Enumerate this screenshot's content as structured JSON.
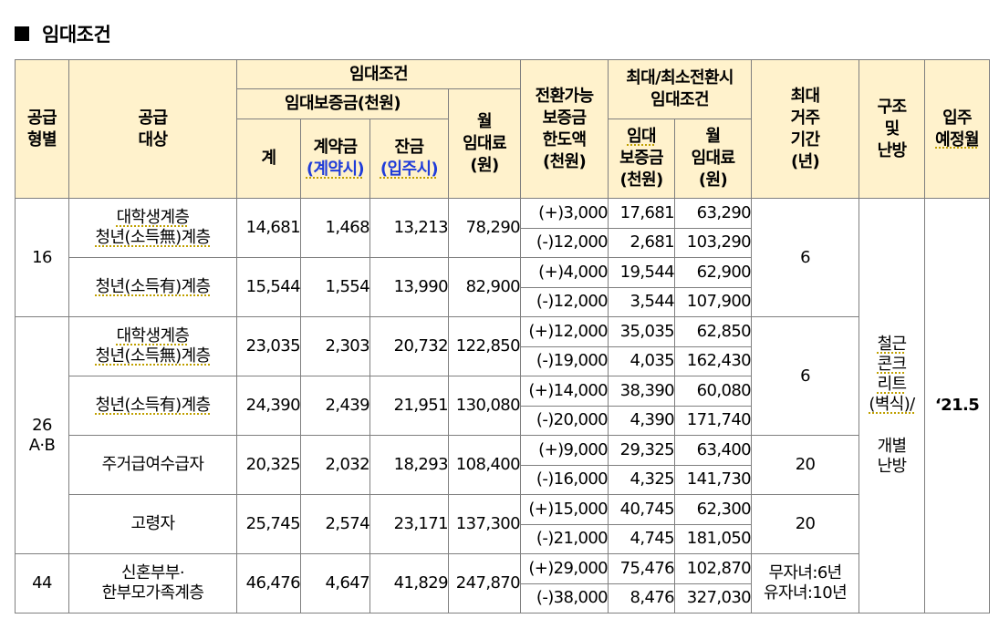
{
  "section_title": "임대조건",
  "headers": {
    "supply_type": [
      "공급",
      "형별"
    ],
    "supply_target": [
      "공급",
      "대상"
    ],
    "lease_conditions": "임대조건",
    "deposit_group": "임대보증금(천원)",
    "total": "계",
    "contract_fee": "계약금",
    "contract_fee_when": "(계약시)",
    "balance": "잔금",
    "balance_when": "(입주시)",
    "monthly_rent": [
      "월",
      "임대료",
      "(원)"
    ],
    "convertible": [
      "전환가능",
      "보증금",
      "한도액",
      "(천원)"
    ],
    "max_min_conversion": [
      "최대/최소전환시",
      "임대조건"
    ],
    "conv_deposit": [
      "임대",
      "보증금",
      "(천원)"
    ],
    "conv_rent": [
      "월",
      "임대료",
      "(원)"
    ],
    "max_residence": [
      "최대",
      "거주",
      "기간",
      "(년)"
    ],
    "structure": [
      "구조",
      "및",
      "난방"
    ],
    "move_in": [
      "입주",
      "예정월"
    ]
  },
  "groups": [
    {
      "type": "16",
      "period": "6",
      "targets": [
        {
          "label": [
            "대학생계층",
            "청년(소득無)계층"
          ],
          "total": "14,681",
          "contract": "1,468",
          "balance": "13,213",
          "rent": "78,290",
          "conversions": [
            {
              "limit": "(+)3,000",
              "deposit": "17,681",
              "rent": "63,290"
            },
            {
              "limit": "(-)12,000",
              "deposit": "2,681",
              "rent": "103,290"
            }
          ]
        },
        {
          "label": [
            "청년(소득有)계층"
          ],
          "total": "15,544",
          "contract": "1,554",
          "balance": "13,990",
          "rent": "82,900",
          "conversions": [
            {
              "limit": "(+)4,000",
              "deposit": "19,544",
              "rent": "62,900"
            },
            {
              "limit": "(-)12,000",
              "deposit": "3,544",
              "rent": "107,900"
            }
          ]
        }
      ]
    },
    {
      "type": [
        "26",
        "A·B"
      ],
      "period_youth": "6",
      "period_housing": "20",
      "period_elderly": "20",
      "targets": [
        {
          "label": [
            "대학생계층",
            "청년(소득無)계층"
          ],
          "total": "23,035",
          "contract": "2,303",
          "balance": "20,732",
          "rent": "122,850",
          "conversions": [
            {
              "limit": "(+)12,000",
              "deposit": "35,035",
              "rent": "62,850"
            },
            {
              "limit": "(-)19,000",
              "deposit": "4,035",
              "rent": "162,430"
            }
          ]
        },
        {
          "label": [
            "청년(소득有)계층"
          ],
          "total": "24,390",
          "contract": "2,439",
          "balance": "21,951",
          "rent": "130,080",
          "conversions": [
            {
              "limit": "(+)14,000",
              "deposit": "38,390",
              "rent": "60,080"
            },
            {
              "limit": "(-)20,000",
              "deposit": "4,390",
              "rent": "171,740"
            }
          ]
        },
        {
          "label": [
            "주거급여수급자"
          ],
          "total": "20,325",
          "contract": "2,032",
          "balance": "18,293",
          "rent": "108,400",
          "conversions": [
            {
              "limit": "(+)9,000",
              "deposit": "29,325",
              "rent": "63,400"
            },
            {
              "limit": "(-)16,000",
              "deposit": "4,325",
              "rent": "141,730"
            }
          ]
        },
        {
          "label": [
            "고령자"
          ],
          "total": "25,745",
          "contract": "2,574",
          "balance": "23,171",
          "rent": "137,300",
          "conversions": [
            {
              "limit": "(+)15,000",
              "deposit": "40,745",
              "rent": "62,300"
            },
            {
              "limit": "(-)21,000",
              "deposit": "4,745",
              "rent": "181,050"
            }
          ]
        }
      ]
    },
    {
      "type": "44",
      "period": [
        "무자녀:6년",
        "유자녀:10년"
      ],
      "targets": [
        {
          "label": [
            "신혼부부·",
            "한부모가족계층"
          ],
          "total": "46,476",
          "contract": "4,647",
          "balance": "41,829",
          "rent": "247,870",
          "conversions": [
            {
              "limit": "(+)29,000",
              "deposit": "75,476",
              "rent": "102,870"
            },
            {
              "limit": "(-)38,000",
              "deposit": "8,476",
              "rent": "327,030"
            }
          ]
        }
      ]
    }
  ],
  "structure_value": [
    "철근",
    "콘크",
    "리트",
    "(벽식)/",
    "개별",
    "난방"
  ],
  "move_in_value": "‘21.5"
}
